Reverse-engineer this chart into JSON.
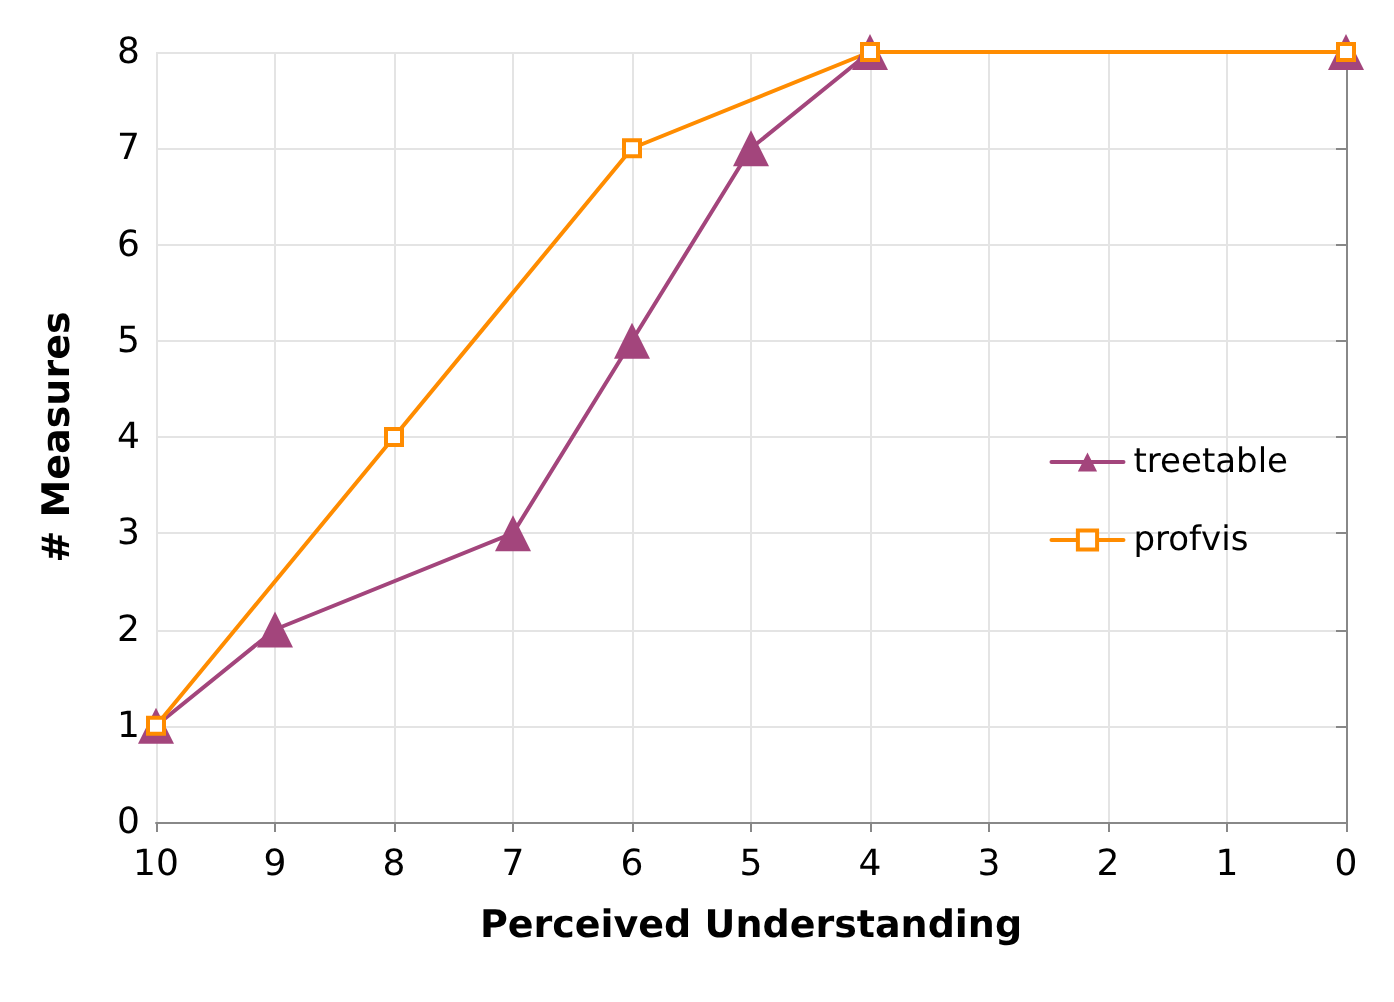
{
  "chart_data": {
    "type": "line",
    "xlabel": "Perceived Understanding",
    "ylabel": "# Measures",
    "xlim": [
      10,
      0
    ],
    "xticks": [
      10,
      9,
      8,
      7,
      6,
      5,
      4,
      3,
      2,
      1,
      0
    ],
    "ylim": [
      0,
      8
    ],
    "yticks": [
      0,
      1,
      2,
      3,
      4,
      5,
      6,
      7,
      8
    ],
    "grid": true,
    "legend": "right",
    "line_style": "solid",
    "series": [
      {
        "name": "treetable",
        "color": "#a3457c",
        "marker": "triangle",
        "x": [
          10,
          9,
          7,
          6,
          5,
          4,
          0
        ],
        "values": [
          1,
          2,
          3,
          5,
          7,
          8,
          8
        ]
      },
      {
        "name": "profvis",
        "color": "#ff8c00",
        "marker": "square",
        "x": [
          10,
          8,
          6,
          4,
          0
        ],
        "values": [
          1,
          4,
          7,
          8,
          8
        ]
      }
    ]
  }
}
